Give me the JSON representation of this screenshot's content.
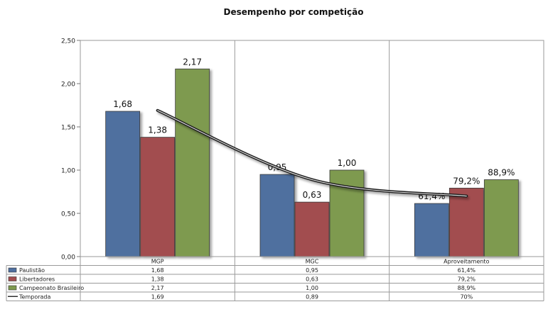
{
  "chart_data": {
    "type": "bar",
    "title": "Desempenho por competição",
    "categories": [
      "MGP",
      "MGC",
      "Aproveitamento"
    ],
    "ylim": [
      0,
      2.5
    ],
    "yticks": [
      "0,00",
      "0,50",
      "1,00",
      "1,50",
      "2,00",
      "2,50"
    ],
    "grid": false,
    "legend": "data-table",
    "series": [
      {
        "name": "Paulistão",
        "type": "bar",
        "color": "#4f6f9f",
        "values": [
          1.68,
          0.95,
          0.614
        ],
        "data_labels": [
          "1,68",
          "0,95",
          "61,4%"
        ],
        "table_values": [
          "1,68",
          "0,95",
          "61,4%"
        ]
      },
      {
        "name": "Libertadores",
        "type": "bar",
        "color": "#a24d4f",
        "values": [
          1.38,
          0.63,
          0.792
        ],
        "data_labels": [
          "1,38",
          "0,63",
          "79,2%"
        ],
        "table_values": [
          "1,38",
          "0,63",
          "79,2%"
        ]
      },
      {
        "name": "Campeonato Brasileiro",
        "type": "bar",
        "color": "#7e9a4f",
        "values": [
          2.17,
          1.0,
          0.889
        ],
        "data_labels": [
          "2,17",
          "1,00",
          "88,9%"
        ],
        "table_values": [
          "2,17",
          "1,00",
          "88,9%"
        ]
      },
      {
        "name": "Temporada",
        "type": "line",
        "color": "#222222",
        "values": [
          1.69,
          0.89,
          0.7
        ],
        "table_values": [
          "1,69",
          "0,89",
          "70%"
        ]
      }
    ]
  }
}
